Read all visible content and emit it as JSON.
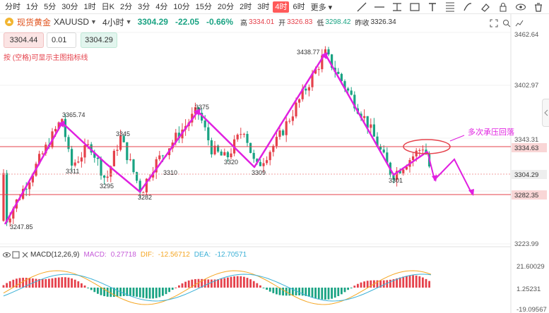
{
  "toolbar": {
    "timeframes": [
      "分时",
      "1分",
      "5分",
      "30分",
      "1时",
      "日K",
      "2分",
      "3分",
      "4分",
      "10分",
      "15分",
      "20分",
      "2时",
      "3时",
      "4时",
      "6时"
    ],
    "active_timeframe": "4时",
    "more_label": "更多",
    "tool_icons": [
      "trend-line-icon",
      "horizontal-line-icon",
      "price-range-icon",
      "rectangle-icon",
      "text-icon",
      "fibonacci-icon",
      "brush-icon",
      "eraser-icon",
      "lock-icon",
      "eye-icon",
      "trash-icon"
    ]
  },
  "symbol": {
    "name": "现货黄金",
    "code": "XAUUSD",
    "period": "4小时",
    "last_price": "3304.29",
    "change": "-22.05",
    "change_pct": "-0.66%",
    "high_label": "高",
    "high": "3334.01",
    "open_label": "开",
    "open": "3326.83",
    "low_label": "低",
    "low": "3298.42",
    "prev_label": "昨收",
    "prev_close": "3326.34"
  },
  "order": {
    "bid": "3304.44",
    "step": "0.01",
    "ask": "3304.29",
    "hint": "按 (空格)可显示主图指标线"
  },
  "price_axis": {
    "top": "3462.64",
    "tick_2": "3402.97",
    "tick_3": "3343.31",
    "current": "3304.29",
    "resistance": "3334.63",
    "support": "3282.35",
    "bottom": "3223.99"
  },
  "annotations": {
    "callout": "多次承压回落",
    "swing_labels": [
      "3247.85",
      "3365.74",
      "3311",
      "3295",
      "3345",
      "3282",
      "3310",
      "3375",
      "3320",
      "3309",
      "3438.77",
      "3301"
    ]
  },
  "colors": {
    "up": "#e5414b",
    "down": "#1aa383",
    "annotation": "#e020e0",
    "level_line": "#e5414b"
  },
  "macd": {
    "title": "MACD(12,26,9)",
    "macd_label": "MACD:",
    "macd_value": "0.27718",
    "dif_label": "DIF:",
    "dif_value": "-12.56712",
    "dea_label": "DEA:",
    "dea_value": "-12.70571",
    "axis_top": "21.60029",
    "axis_mid": "1.25231",
    "axis_bottom": "-19.09567"
  }
}
